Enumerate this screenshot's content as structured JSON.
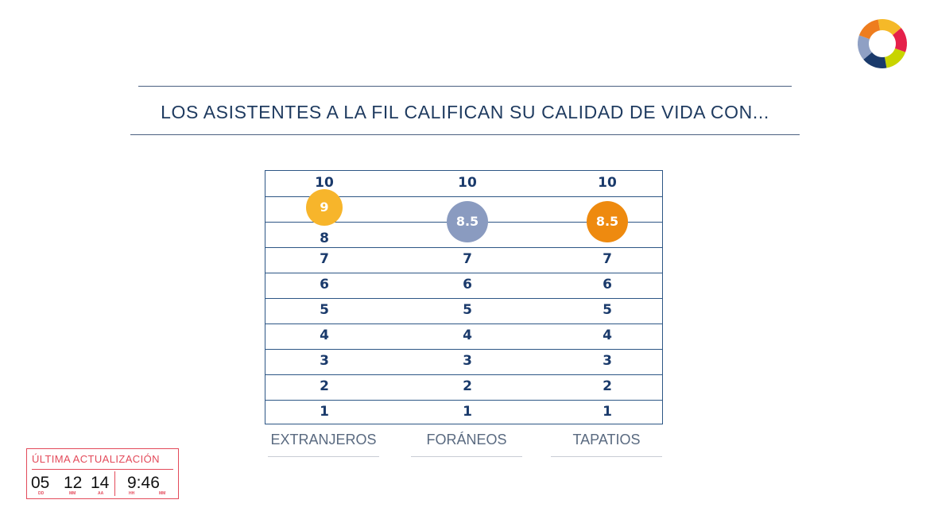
{
  "title": "LOS ASISTENTES A LA FIL CALIFICAN SU CALIDAD DE VIDA CON...",
  "logo": {
    "icon": "ring-logo-icon",
    "colors": [
      "#f5b928",
      "#e5204a",
      "#c8d400",
      "#1a3a6b",
      "#8fa0c4",
      "#ee7d1e"
    ]
  },
  "chart_data": {
    "type": "scatter",
    "categories": [
      "EXTRANJEROS",
      "FORÁNEOS",
      "TAPATIOS"
    ],
    "ylim": [
      1,
      10
    ],
    "ticks": [
      "10",
      "9",
      "8",
      "7",
      "6",
      "5",
      "4",
      "3",
      "2",
      "1"
    ],
    "values": [
      9,
      8.5,
      8.5
    ],
    "value_labels": [
      "9",
      "8.5",
      "8.5"
    ],
    "colors": [
      "#f7b52b",
      "#8a9bc0",
      "#ee8a0f"
    ],
    "grid": true
  },
  "last_update": {
    "label": "ÚLTIMA ACTUALIZACIÓN",
    "day": "05",
    "month": "12",
    "year": "14",
    "hour": "9:46",
    "day_label": "DD",
    "month_label": "MM",
    "year_label": "AA",
    "hour_label": "HH",
    "minute_label": "MM"
  }
}
